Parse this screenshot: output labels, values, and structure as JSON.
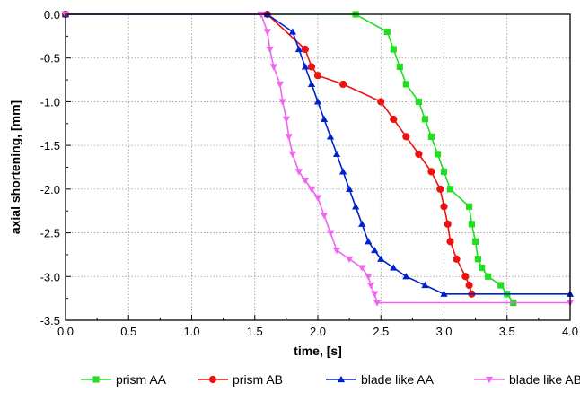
{
  "chart_data": {
    "type": "line",
    "title": "",
    "xlabel": "time, [s]",
    "ylabel": "axial shortening, [mm]",
    "xlim": [
      0.0,
      4.0
    ],
    "ylim": [
      -3.5,
      0.0
    ],
    "x_ticks": [
      "0.0",
      "0.5",
      "1.0",
      "1.5",
      "2.0",
      "2.5",
      "3.0",
      "3.5",
      "4.0"
    ],
    "y_ticks": [
      "0.0",
      "-0.5",
      "-1.0",
      "-1.5",
      "-2.0",
      "-2.5",
      "-3.0",
      "-3.5"
    ],
    "x_tick_values": [
      0.0,
      0.5,
      1.0,
      1.5,
      2.0,
      2.5,
      3.0,
      3.5,
      4.0
    ],
    "y_tick_values": [
      0.0,
      -0.5,
      -1.0,
      -1.5,
      -2.0,
      -2.5,
      -3.0,
      -3.5
    ],
    "grid": true,
    "legend_position": "bottom",
    "series": [
      {
        "name": "prism AA",
        "color": "#22dd22",
        "marker": "square",
        "points": [
          [
            0.0,
            0.0
          ],
          [
            2.3,
            0.0
          ],
          [
            2.55,
            -0.2
          ],
          [
            2.6,
            -0.4
          ],
          [
            2.65,
            -0.6
          ],
          [
            2.7,
            -0.8
          ],
          [
            2.8,
            -1.0
          ],
          [
            2.85,
            -1.2
          ],
          [
            2.9,
            -1.4
          ],
          [
            2.95,
            -1.6
          ],
          [
            3.0,
            -1.8
          ],
          [
            3.05,
            -2.0
          ],
          [
            3.2,
            -2.2
          ],
          [
            3.22,
            -2.4
          ],
          [
            3.25,
            -2.6
          ],
          [
            3.27,
            -2.8
          ],
          [
            3.3,
            -2.9
          ],
          [
            3.35,
            -3.0
          ],
          [
            3.45,
            -3.1
          ],
          [
            3.5,
            -3.2
          ],
          [
            3.55,
            -3.3
          ]
        ]
      },
      {
        "name": "prism AB",
        "color": "#ee1111",
        "marker": "circle",
        "points": [
          [
            0.0,
            0.0
          ],
          [
            1.6,
            0.0
          ],
          [
            1.9,
            -0.4
          ],
          [
            1.95,
            -0.6
          ],
          [
            2.0,
            -0.7
          ],
          [
            2.2,
            -0.8
          ],
          [
            2.5,
            -1.0
          ],
          [
            2.6,
            -1.2
          ],
          [
            2.7,
            -1.4
          ],
          [
            2.8,
            -1.6
          ],
          [
            2.9,
            -1.8
          ],
          [
            2.97,
            -2.0
          ],
          [
            3.0,
            -2.2
          ],
          [
            3.03,
            -2.4
          ],
          [
            3.05,
            -2.6
          ],
          [
            3.1,
            -2.8
          ],
          [
            3.17,
            -3.0
          ],
          [
            3.2,
            -3.1
          ],
          [
            3.22,
            -3.2
          ]
        ]
      },
      {
        "name": "blade like AA",
        "color": "#0022cc",
        "marker": "triangle-up",
        "points": [
          [
            0.0,
            0.0
          ],
          [
            1.6,
            0.0
          ],
          [
            1.8,
            -0.2
          ],
          [
            1.85,
            -0.4
          ],
          [
            1.9,
            -0.6
          ],
          [
            1.95,
            -0.8
          ],
          [
            2.0,
            -1.0
          ],
          [
            2.05,
            -1.2
          ],
          [
            2.1,
            -1.4
          ],
          [
            2.15,
            -1.6
          ],
          [
            2.2,
            -1.8
          ],
          [
            2.25,
            -2.0
          ],
          [
            2.3,
            -2.2
          ],
          [
            2.35,
            -2.4
          ],
          [
            2.4,
            -2.6
          ],
          [
            2.45,
            -2.7
          ],
          [
            2.5,
            -2.8
          ],
          [
            2.6,
            -2.9
          ],
          [
            2.7,
            -3.0
          ],
          [
            2.85,
            -3.1
          ],
          [
            3.0,
            -3.2
          ],
          [
            4.0,
            -3.2
          ]
        ]
      },
      {
        "name": "blade like AB",
        "color": "#ee66ee",
        "marker": "triangle-down",
        "points": [
          [
            0.0,
            0.0
          ],
          [
            1.55,
            0.0
          ],
          [
            1.6,
            -0.2
          ],
          [
            1.62,
            -0.4
          ],
          [
            1.65,
            -0.6
          ],
          [
            1.7,
            -0.8
          ],
          [
            1.72,
            -1.0
          ],
          [
            1.75,
            -1.2
          ],
          [
            1.77,
            -1.4
          ],
          [
            1.8,
            -1.6
          ],
          [
            1.85,
            -1.8
          ],
          [
            1.9,
            -1.9
          ],
          [
            1.95,
            -2.0
          ],
          [
            2.0,
            -2.1
          ],
          [
            2.05,
            -2.3
          ],
          [
            2.1,
            -2.5
          ],
          [
            2.15,
            -2.7
          ],
          [
            2.25,
            -2.8
          ],
          [
            2.35,
            -2.9
          ],
          [
            2.4,
            -3.0
          ],
          [
            2.42,
            -3.1
          ],
          [
            2.45,
            -3.2
          ],
          [
            2.47,
            -3.3
          ],
          [
            4.0,
            -3.3
          ]
        ]
      }
    ]
  }
}
